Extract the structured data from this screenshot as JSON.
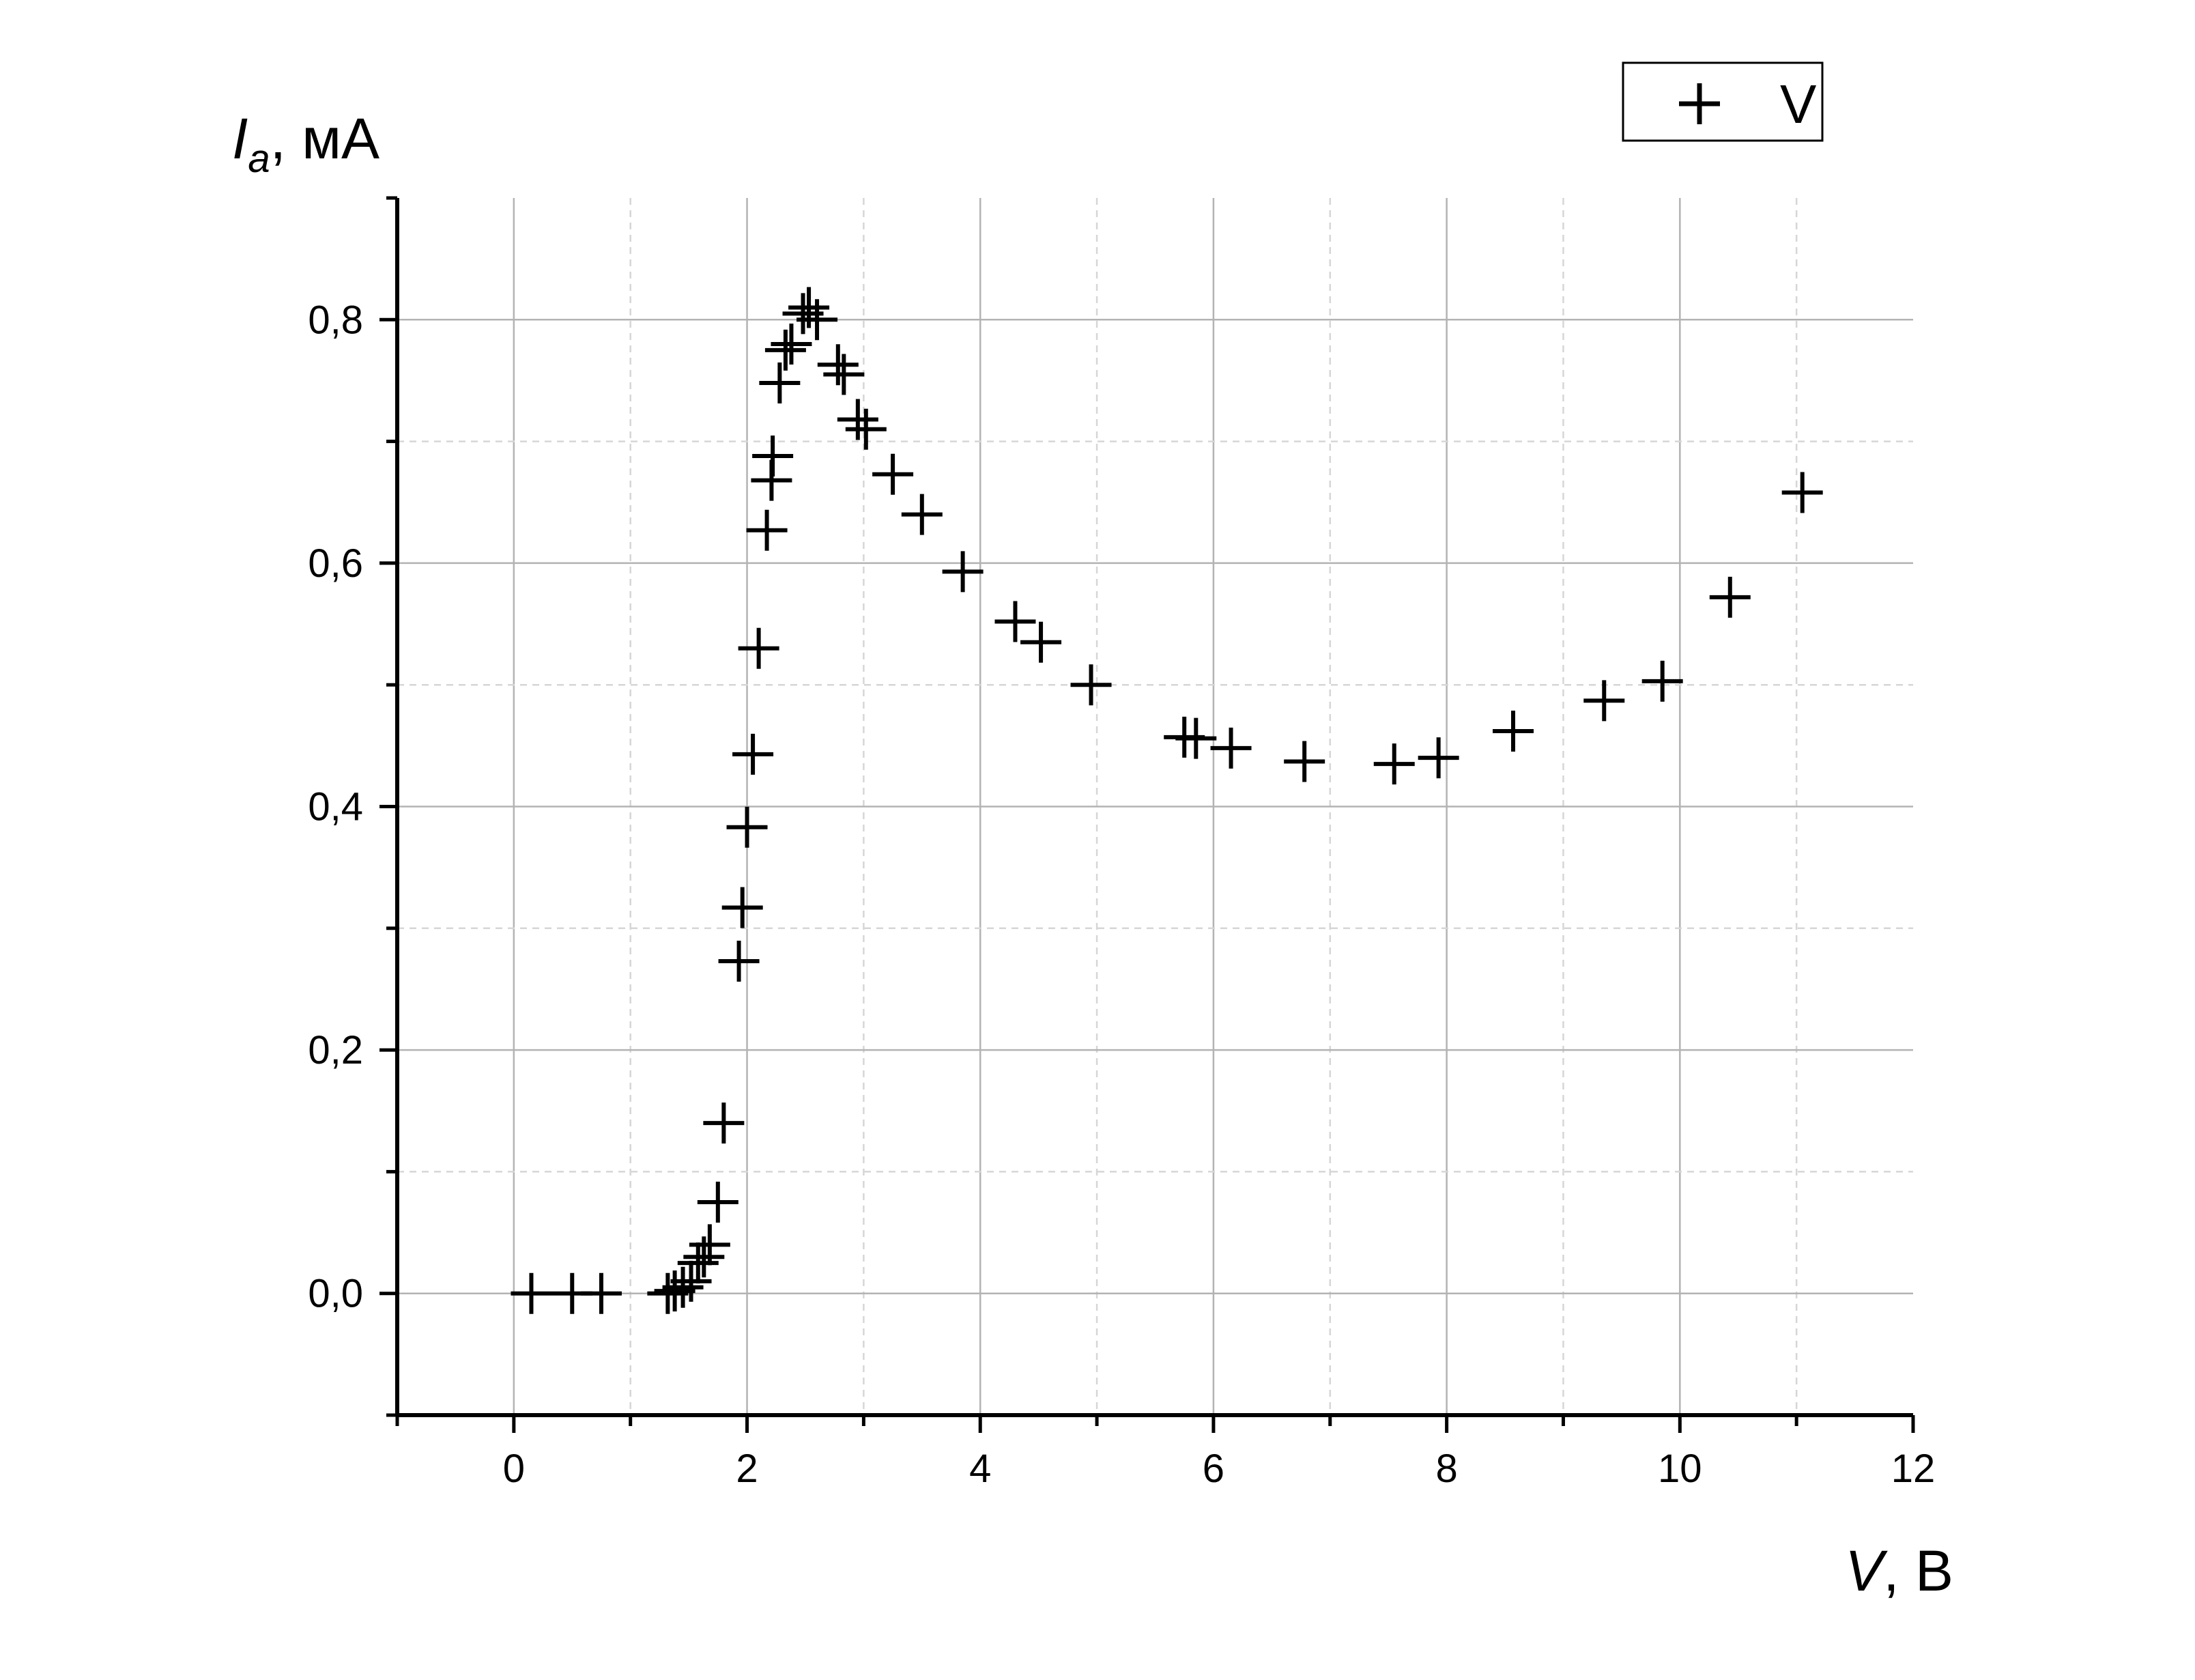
{
  "chart_data": {
    "type": "scatter",
    "xlabel": {
      "symbol": "V",
      "unit": ", В"
    },
    "ylabel": {
      "symbol": "I",
      "subscript": "a",
      "unit": ", мА"
    },
    "xlim": [
      -1,
      12
    ],
    "ylim": [
      -0.1,
      0.9
    ],
    "x_ticks": [
      0,
      2,
      4,
      6,
      8,
      10,
      12
    ],
    "x_tick_labels": [
      "0",
      "2",
      "4",
      "6",
      "8",
      "10",
      "12"
    ],
    "y_ticks": [
      0.0,
      0.2,
      0.4,
      0.6,
      0.8
    ],
    "y_tick_labels": [
      "0,0",
      "0,2",
      "0,4",
      "0,6",
      "0,8"
    ],
    "grid": true,
    "legend": {
      "position": "top-right",
      "marker": "plus"
    },
    "marker_color": "#000000",
    "series": [
      {
        "name": "V",
        "marker": "plus",
        "points": [
          [
            0.15,
            0.0
          ],
          [
            0.5,
            0.0
          ],
          [
            0.75,
            0.0
          ],
          [
            1.32,
            0.0
          ],
          [
            1.38,
            0.002
          ],
          [
            1.45,
            0.005
          ],
          [
            1.52,
            0.01
          ],
          [
            1.58,
            0.025
          ],
          [
            1.63,
            0.03
          ],
          [
            1.68,
            0.04
          ],
          [
            1.75,
            0.075
          ],
          [
            1.8,
            0.14
          ],
          [
            1.93,
            0.273
          ],
          [
            1.96,
            0.317
          ],
          [
            2.0,
            0.383
          ],
          [
            2.05,
            0.443
          ],
          [
            2.1,
            0.53
          ],
          [
            2.17,
            0.627
          ],
          [
            2.21,
            0.668
          ],
          [
            2.22,
            0.688
          ],
          [
            2.28,
            0.748
          ],
          [
            2.33,
            0.775
          ],
          [
            2.38,
            0.78
          ],
          [
            2.48,
            0.805
          ],
          [
            2.53,
            0.81
          ],
          [
            2.6,
            0.8
          ],
          [
            2.78,
            0.763
          ],
          [
            2.83,
            0.755
          ],
          [
            2.95,
            0.718
          ],
          [
            3.02,
            0.71
          ],
          [
            3.25,
            0.673
          ],
          [
            3.5,
            0.64
          ],
          [
            3.85,
            0.593
          ],
          [
            4.3,
            0.552
          ],
          [
            4.52,
            0.535
          ],
          [
            4.95,
            0.5
          ],
          [
            5.75,
            0.457
          ],
          [
            5.85,
            0.456
          ],
          [
            6.15,
            0.448
          ],
          [
            6.78,
            0.437
          ],
          [
            7.55,
            0.435
          ],
          [
            7.93,
            0.44
          ],
          [
            8.57,
            0.462
          ],
          [
            9.35,
            0.487
          ],
          [
            9.85,
            0.503
          ],
          [
            10.43,
            0.572
          ],
          [
            11.05,
            0.658
          ]
        ]
      }
    ]
  }
}
